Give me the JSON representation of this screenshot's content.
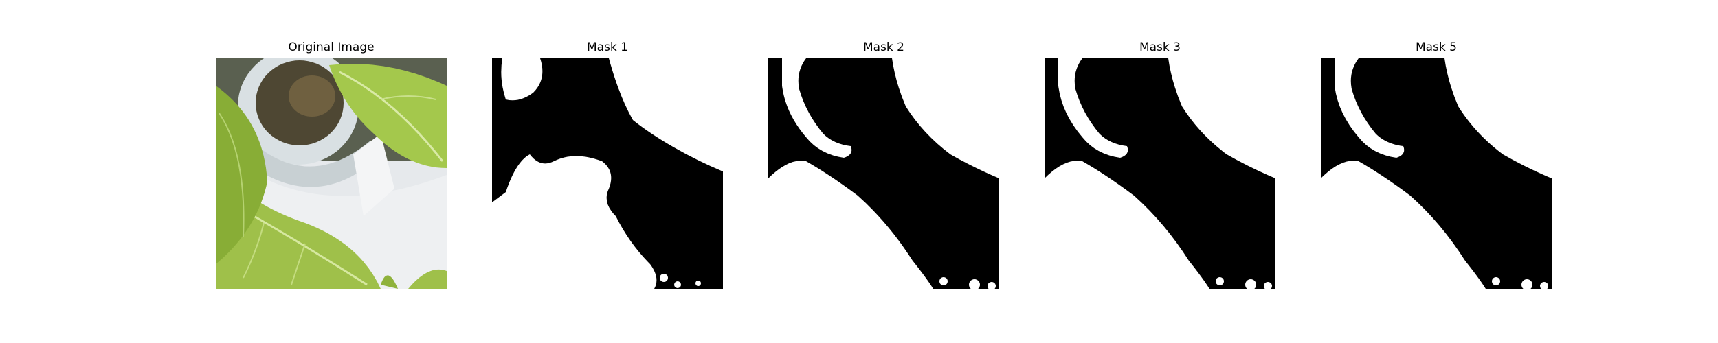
{
  "figure": {
    "panels": [
      {
        "id": "original",
        "title": "Original Image"
      },
      {
        "id": "mask1",
        "title": "Mask 1"
      },
      {
        "id": "mask2",
        "title": "Mask 2"
      },
      {
        "id": "mask3",
        "title": "Mask 3"
      },
      {
        "id": "mask5",
        "title": "Mask 5"
      }
    ]
  },
  "colors": {
    "background": "#ffffff",
    "mask_foreground": "#ffffff",
    "mask_background": "#000000",
    "leaf_green": "#9bbf45",
    "leaf_dark": "#587a25",
    "leaf_light": "#c4de78",
    "surface_grey": "#e8ebee",
    "ring_grey": "#cdd6da"
  }
}
